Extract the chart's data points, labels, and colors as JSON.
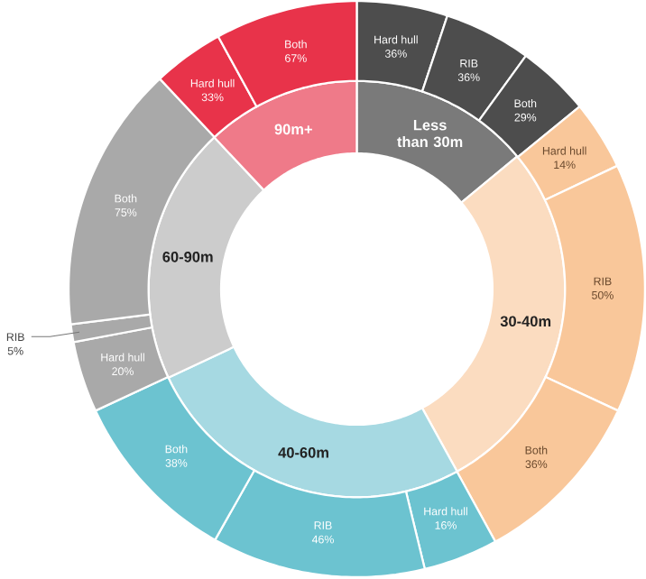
{
  "chart_data": [
    {
      "type": "donut",
      "categories": [
        "Less than 30m",
        "30-40m",
        "40-60m",
        "60-90m",
        "90m+"
      ],
      "values": [
        14,
        28,
        26,
        20,
        12
      ],
      "colors": [
        "#7a7a7a",
        "#fbdcc0",
        "#a6d9e2",
        "#cccccc",
        "#ef7a89"
      ]
    },
    {
      "type": "donut",
      "categories": [
        "Hard hull",
        "RIB",
        "Both",
        "Hard hull",
        "RIB",
        "Both",
        "Hard hull",
        "RIB",
        "Both",
        "Hard hull",
        "RIB",
        "Both",
        "Hard hull",
        "Both"
      ],
      "values": [
        5.1,
        4.9,
        4.1,
        3.9,
        14.0,
        10.1,
        4.2,
        12.0,
        9.9,
        4.0,
        1.0,
        15.0,
        4.0,
        8.0
      ],
      "annotations": [
        "36%",
        "36%",
        "29%",
        "14%",
        "50%",
        "36%",
        "16%",
        "46%",
        "38%",
        "20%",
        "5%",
        "75%",
        "33%",
        "67%"
      ],
      "colors": [
        "#4d4d4d",
        "#4d4d4d",
        "#4d4d4d",
        "#f9c79a",
        "#f9c79a",
        "#f9c79a",
        "#6cc3d0",
        "#6cc3d0",
        "#6cc3d0",
        "#a9a9a9",
        "#a9a9a9",
        "#a9a9a9",
        "#e8334a",
        "#e8334a"
      ]
    }
  ]
}
